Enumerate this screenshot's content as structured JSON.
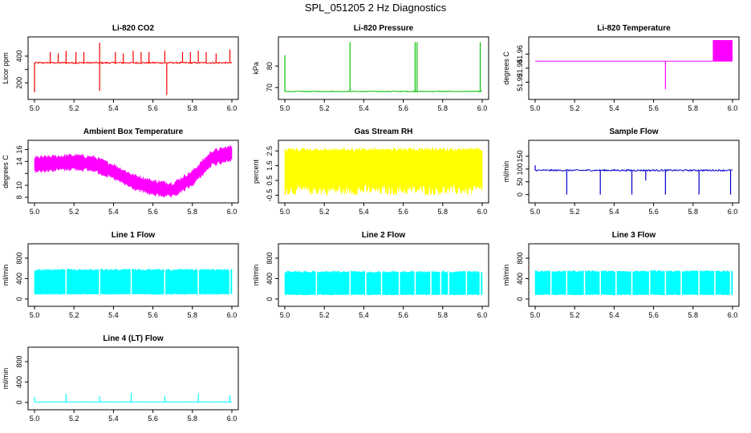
{
  "figure": {
    "title": "SPL_051205  2 Hz Diagnostics"
  },
  "chart_data": [
    {
      "id": "li820-co2",
      "type": "line",
      "title": "Li-820 CO2",
      "ylabel": "Licor ppm",
      "color": "#ff0000",
      "xlim": [
        5.0,
        6.0
      ],
      "ylim": [
        100,
        520
      ],
      "xticks": [
        5.0,
        5.2,
        5.4,
        5.6,
        5.8,
        6.0
      ],
      "xticklabels": [
        "5.0",
        "5.2",
        "5.4",
        "5.6",
        "5.8",
        "6.0"
      ],
      "yticks": [
        200,
        300,
        400
      ],
      "yticklabels": [
        "200",
        "",
        "400"
      ],
      "baseline": 350,
      "noise": 6,
      "spikes": [
        {
          "x": 5.0,
          "y": 130
        },
        {
          "x": 5.08,
          "y": 430
        },
        {
          "x": 5.12,
          "y": 420
        },
        {
          "x": 5.16,
          "y": 440
        },
        {
          "x": 5.21,
          "y": 430
        },
        {
          "x": 5.25,
          "y": 430
        },
        {
          "x": 5.33,
          "y": 500
        },
        {
          "x": 5.33,
          "y": 140
        },
        {
          "x": 5.41,
          "y": 430
        },
        {
          "x": 5.45,
          "y": 420
        },
        {
          "x": 5.5,
          "y": 440
        },
        {
          "x": 5.54,
          "y": 430
        },
        {
          "x": 5.58,
          "y": 430
        },
        {
          "x": 5.66,
          "y": 440
        },
        {
          "x": 5.67,
          "y": 110
        },
        {
          "x": 5.75,
          "y": 430
        },
        {
          "x": 5.79,
          "y": 430
        },
        {
          "x": 5.83,
          "y": 440
        },
        {
          "x": 5.87,
          "y": 430
        },
        {
          "x": 5.92,
          "y": 420
        },
        {
          "x": 5.99,
          "y": 450
        }
      ]
    },
    {
      "id": "li820-pressure",
      "type": "line",
      "title": "Li-820 Pressure",
      "ylabel": "kPa",
      "color": "#00c000",
      "xlim": [
        5.0,
        6.0
      ],
      "ylim": [
        66,
        92
      ],
      "xticks": [
        5.0,
        5.2,
        5.4,
        5.6,
        5.8,
        6.0
      ],
      "xticklabels": [
        "5.0",
        "5.2",
        "5.4",
        "5.6",
        "5.8",
        "6.0"
      ],
      "yticks": [
        70,
        80
      ],
      "yticklabels": [
        "70",
        "80"
      ],
      "baseline": 68.2,
      "noise": 0.15,
      "spikes": [
        {
          "x": 5.0,
          "y": 85
        },
        {
          "x": 5.33,
          "y": 91
        },
        {
          "x": 5.66,
          "y": 91
        },
        {
          "x": 5.67,
          "y": 91
        },
        {
          "x": 5.99,
          "y": 91
        }
      ]
    },
    {
      "id": "li820-temperature",
      "type": "line",
      "title": "Li-820 Temperature",
      "ylabel": "degrees C",
      "color": "#ff00ff",
      "xlim": [
        5.0,
        6.0
      ],
      "ylim": [
        51.9,
        51.98
      ],
      "xticks": [
        5.0,
        5.2,
        5.4,
        5.6,
        5.8,
        6.0
      ],
      "xticklabels": [
        "5.0",
        "5.2",
        "5.4",
        "5.6",
        "5.8",
        "6.0"
      ],
      "yticks": [
        51.92,
        51.94,
        51.96
      ],
      "yticklabels": [
        "51.92",
        "51.94",
        "51.96"
      ],
      "baseline": 51.95,
      "spikes": [
        {
          "x": 5.66,
          "y": 51.91
        }
      ],
      "oscillation": {
        "from": 5.9,
        "to": 6.0,
        "low": 51.95,
        "high": 51.98
      }
    },
    {
      "id": "ambient-box-temperature",
      "type": "line",
      "title": "Ambient Box Temperature",
      "ylabel": "degrees C",
      "color": "#ff00ff",
      "xlim": [
        5.0,
        6.0
      ],
      "ylim": [
        7.6,
        17
      ],
      "xticks": [
        5.0,
        5.2,
        5.4,
        5.6,
        5.8,
        6.0
      ],
      "xticklabels": [
        "5.0",
        "5.2",
        "5.4",
        "5.6",
        "5.8",
        "6.0"
      ],
      "yticks": [
        8,
        10,
        12,
        14,
        16
      ],
      "yticklabels": [
        "8",
        "10",
        "",
        "14",
        "16"
      ],
      "band_x": [
        5.0,
        5.1,
        5.2,
        5.3,
        5.4,
        5.5,
        5.6,
        5.7,
        5.8,
        5.9,
        6.0
      ],
      "band_mid": [
        13.5,
        13.7,
        13.9,
        13.6,
        12.3,
        10.6,
        9.6,
        9.2,
        11.2,
        14.6,
        15.4
      ],
      "band_half": 1.1
    },
    {
      "id": "gas-stream-rh",
      "type": "line",
      "title": "Gas Stream RH",
      "ylabel": "percent",
      "color": "#ffff00",
      "xlim": [
        5.0,
        6.0
      ],
      "ylim": [
        -0.8,
        3.0
      ],
      "xticks": [
        5.0,
        5.2,
        5.4,
        5.6,
        5.8,
        6.0
      ],
      "xticklabels": [
        "5.0",
        "5.2",
        "5.4",
        "5.6",
        "5.8",
        "6.0"
      ],
      "yticks": [
        -0.5,
        0.5,
        1.5,
        2.5
      ],
      "yticklabels": [
        "-0.5",
        "0.5",
        "1.5",
        "2.5"
      ],
      "band_x": [
        5.0,
        6.0
      ],
      "band_mid": [
        1.2,
        1.2
      ],
      "band_top": 2.7,
      "band_bottom": -0.5
    },
    {
      "id": "sample-flow",
      "type": "line",
      "title": "Sample Flow",
      "ylabel": "ml/min",
      "color": "#0000cc",
      "xlim": [
        5.0,
        6.0
      ],
      "ylim": [
        -20,
        200
      ],
      "xticks": [
        5.0,
        5.2,
        5.4,
        5.6,
        5.8,
        6.0
      ],
      "xticklabels": [
        "5.0",
        "5.2",
        "5.4",
        "5.6",
        "5.8",
        "6.0"
      ],
      "yticks": [
        0,
        50,
        100,
        150
      ],
      "yticklabels": [
        "0",
        "50",
        "100",
        "150"
      ],
      "baseline": 95,
      "noise": 3,
      "spikes": [
        {
          "x": 5.16,
          "y": 0
        },
        {
          "x": 5.33,
          "y": 0
        },
        {
          "x": 5.49,
          "y": 0
        },
        {
          "x": 5.56,
          "y": 55
        },
        {
          "x": 5.66,
          "y": 0
        },
        {
          "x": 5.83,
          "y": 0
        },
        {
          "x": 5.99,
          "y": 0
        },
        {
          "x": 5.0,
          "y": 115
        }
      ]
    },
    {
      "id": "line-1-flow",
      "type": "line",
      "title": "Line 1 Flow",
      "ylabel": "ml/min",
      "color": "#00ffff",
      "xlim": [
        5.0,
        6.0
      ],
      "ylim": [
        -80,
        1020
      ],
      "xticks": [
        5.0,
        5.2,
        5.4,
        5.6,
        5.8,
        6.0
      ],
      "xticklabels": [
        "5.0",
        "5.2",
        "5.4",
        "5.6",
        "5.8",
        "6.0"
      ],
      "yticks": [
        0,
        400,
        800
      ],
      "yticklabels": [
        "0",
        "400",
        "800"
      ],
      "band_x": [
        5.0,
        6.0
      ],
      "band_mid": [
        300,
        300
      ],
      "band_top": 590,
      "band_bottom": 90,
      "gaps": [
        5.16,
        5.33,
        5.49,
        5.66,
        5.83,
        5.99
      ]
    },
    {
      "id": "line-2-flow",
      "type": "line",
      "title": "Line 2 Flow",
      "ylabel": "ml/min",
      "color": "#00ffff",
      "xlim": [
        5.0,
        6.0
      ],
      "ylim": [
        -80,
        1020
      ],
      "xticks": [
        5.0,
        5.2,
        5.4,
        5.6,
        5.8,
        6.0
      ],
      "xticklabels": [
        "5.0",
        "5.2",
        "5.4",
        "5.6",
        "5.8",
        "6.0"
      ],
      "yticks": [
        0,
        400,
        800
      ],
      "yticklabels": [
        "0",
        "400",
        "800"
      ],
      "band_x": [
        5.0,
        6.0
      ],
      "band_mid": [
        300,
        300
      ],
      "band_top": 550,
      "band_bottom": 80,
      "gaps": [
        5.16,
        5.33,
        5.41,
        5.49,
        5.58,
        5.66,
        5.74,
        5.79,
        5.83,
        5.92,
        5.99
      ]
    },
    {
      "id": "line-3-flow",
      "type": "line",
      "title": "Line 3 Flow",
      "ylabel": "ml/min",
      "color": "#00ffff",
      "xlim": [
        5.0,
        6.0
      ],
      "ylim": [
        -80,
        1020
      ],
      "xticks": [
        5.0,
        5.2,
        5.4,
        5.6,
        5.8,
        6.0
      ],
      "xticklabels": [
        "5.0",
        "5.2",
        "5.4",
        "5.6",
        "5.8",
        "6.0"
      ],
      "yticks": [
        0,
        400,
        800
      ],
      "yticklabels": [
        "0",
        "400",
        "800"
      ],
      "band_x": [
        5.0,
        6.0
      ],
      "band_mid": [
        300,
        300
      ],
      "band_top": 560,
      "band_bottom": 80,
      "gaps": [
        5.08,
        5.16,
        5.25,
        5.33,
        5.41,
        5.49,
        5.58,
        5.66,
        5.74,
        5.83,
        5.91,
        5.99
      ]
    },
    {
      "id": "line-4-lt-flow",
      "type": "line",
      "title": "Line 4 (LT) Flow",
      "ylabel": "ml/min",
      "color": "#00ffff",
      "xlim": [
        5.0,
        6.0
      ],
      "ylim": [
        -80,
        1020
      ],
      "xticks": [
        5.0,
        5.2,
        5.4,
        5.6,
        5.8,
        6.0
      ],
      "xticklabels": [
        "5.0",
        "5.2",
        "5.4",
        "5.6",
        "5.8",
        "6.0"
      ],
      "yticks": [
        0,
        400,
        800
      ],
      "yticklabels": [
        "0",
        "400",
        "800"
      ],
      "baseline": 10,
      "noise": 3,
      "spikes": [
        {
          "x": 5.0,
          "y": 110
        },
        {
          "x": 5.16,
          "y": 170
        },
        {
          "x": 5.33,
          "y": 120
        },
        {
          "x": 5.49,
          "y": 190
        },
        {
          "x": 5.66,
          "y": 130
        },
        {
          "x": 5.83,
          "y": 170
        },
        {
          "x": 5.99,
          "y": 140
        }
      ]
    }
  ]
}
